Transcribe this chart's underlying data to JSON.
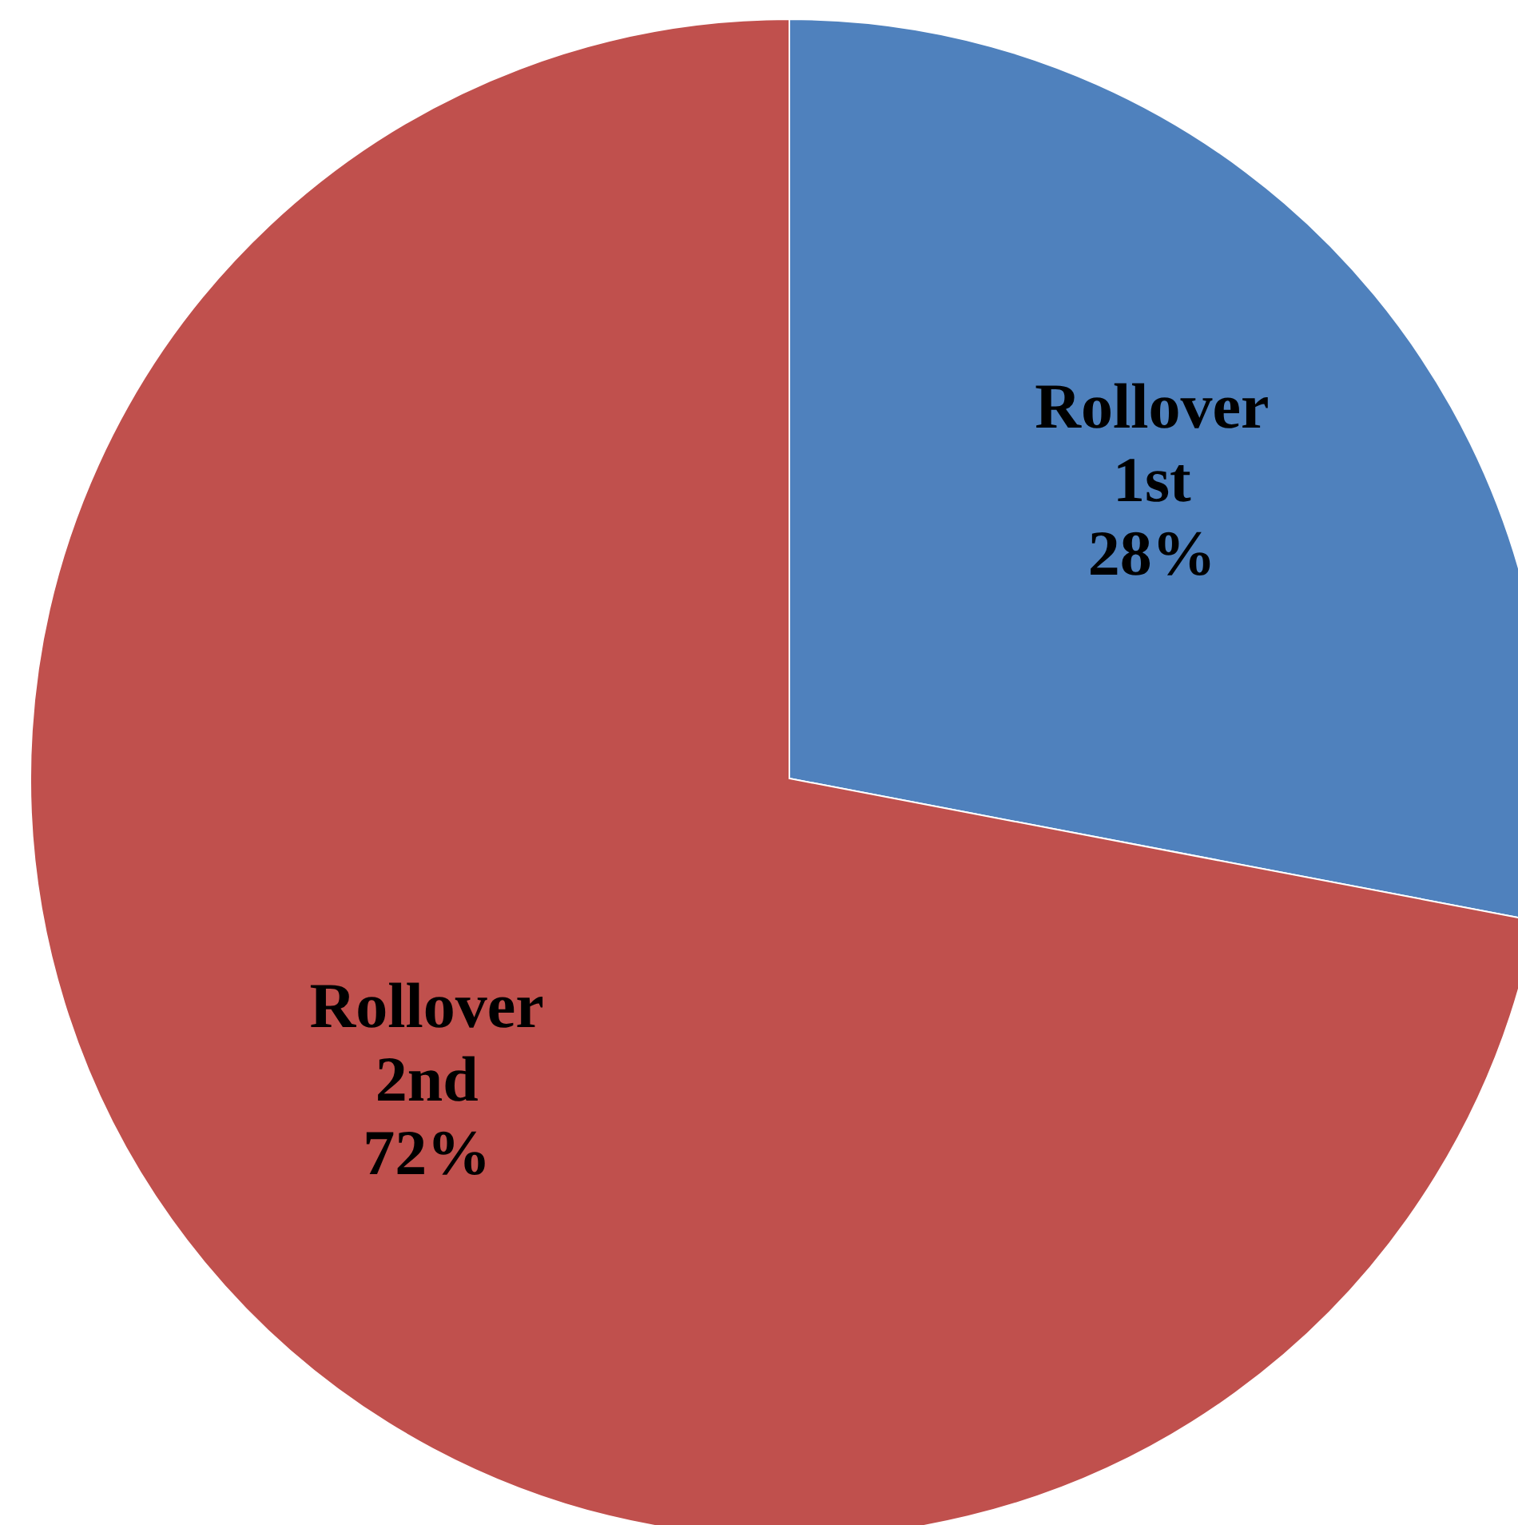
{
  "chart_data": {
    "type": "pie",
    "categories": [
      "Rollover 1st",
      "Rollover 2nd"
    ],
    "values": [
      28,
      72
    ],
    "colors": [
      "#4f81bd",
      "#c0504d"
    ],
    "value_labels": [
      "28%",
      "72%"
    ]
  }
}
